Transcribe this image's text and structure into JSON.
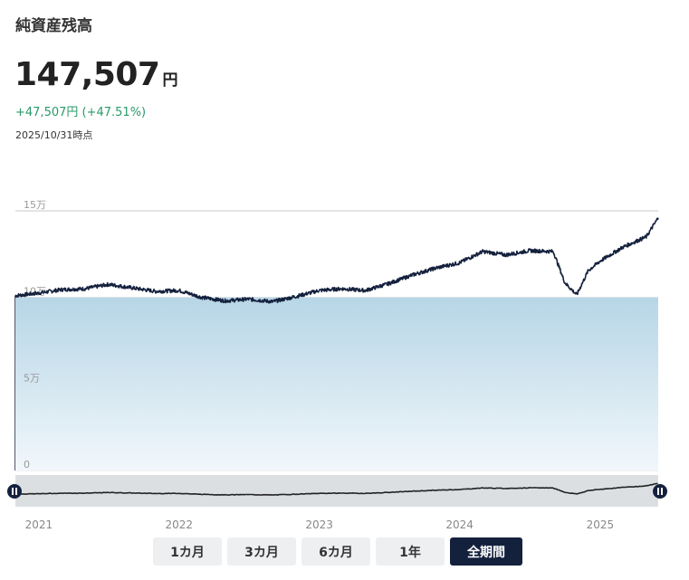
{
  "header": {
    "title": "純資産残高",
    "value": "147,507",
    "unit": "円",
    "change": "+47,507円 (+47.51%)",
    "as_of": "2025/10/31時点"
  },
  "chart_data": {
    "type": "area",
    "ylim": [
      0,
      150000
    ],
    "y_ticks": [
      {
        "value": 0,
        "label": "0"
      },
      {
        "value": 50000,
        "label": "5万"
      },
      {
        "value": 100000,
        "label": "10万"
      },
      {
        "value": 150000,
        "label": "15万"
      }
    ],
    "x_ticks": [
      "2021",
      "2022",
      "2023",
      "2024",
      "2025"
    ],
    "baseline": 100000,
    "series": [
      {
        "x": [
          "2020-11",
          "2021-01",
          "2021-03",
          "2021-05",
          "2021-07",
          "2021-09",
          "2021-11",
          "2022-01",
          "2022-03",
          "2022-05",
          "2022-07",
          "2022-09",
          "2022-11",
          "2023-01",
          "2023-03",
          "2023-05",
          "2023-07",
          "2023-09",
          "2023-11",
          "2024-01",
          "2024-03",
          "2024-05",
          "2024-07",
          "2024-09",
          "2024-10",
          "2024-11",
          "2024-12",
          "2025-01",
          "2025-03",
          "2025-05",
          "2025-06"
        ],
        "values": [
          101000,
          102500,
          104500,
          105000,
          107500,
          105500,
          103500,
          104000,
          100000,
          98000,
          99000,
          97500,
          100500,
          104000,
          105000,
          104000,
          108000,
          113000,
          117000,
          120000,
          126500,
          124500,
          127000,
          126500,
          108500,
          101500,
          115500,
          121000,
          129000,
          135000,
          146000
        ]
      }
    ],
    "colors": {
      "line": "#14213d",
      "area_top": "#b7d6e6",
      "area_bottom": "#f1f7fb"
    }
  },
  "navigator": {
    "handle_left": "pause-icon",
    "handle_right": "pause-icon"
  },
  "buttons": [
    {
      "label": "1カ月",
      "active": false
    },
    {
      "label": "3カ月",
      "active": false
    },
    {
      "label": "6カ月",
      "active": false
    },
    {
      "label": "1年",
      "active": false
    },
    {
      "label": "全期間",
      "active": true
    }
  ]
}
